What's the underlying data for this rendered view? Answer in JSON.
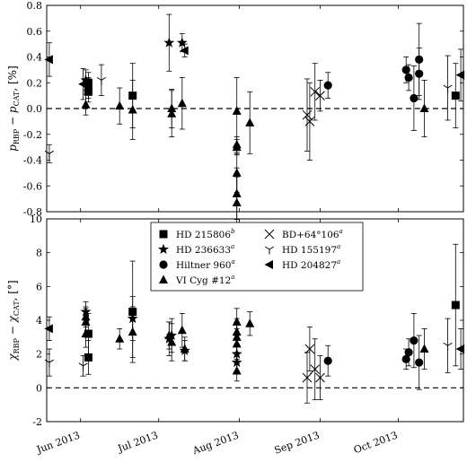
{
  "chart_data": [
    {
      "type": "scatter",
      "xlabel": "",
      "ylabel_main": "p",
      "ylabel_sub": "RBP",
      "ylabel_mid": " − p",
      "ylabel_sub2": "CAT",
      "ylabel_unit": ", [%]",
      "ylim": [
        -0.8,
        0.8
      ],
      "yticks": [
        -0.8,
        -0.6,
        -0.4,
        -0.2,
        0.0,
        0.2,
        0.4,
        0.6,
        0.8
      ],
      "xlim": [
        "2013-05-19",
        "2013-10-26"
      ],
      "zero_line": true,
      "series": [
        {
          "marker": "square",
          "points": [
            {
              "x": "2013-06-04",
              "y": 0.2,
              "err": 0.08
            },
            {
              "x": "2013-06-04",
              "y": 0.16,
              "err": 0.08
            },
            {
              "x": "2013-06-04",
              "y": 0.13,
              "err": 0.08
            },
            {
              "x": "2013-06-21",
              "y": 0.1,
              "err": 0.25
            },
            {
              "x": "2013-10-23",
              "y": 0.1,
              "err": 0.25
            }
          ]
        },
        {
          "marker": "star",
          "points": [
            {
              "x": "2013-07-05",
              "y": 0.51,
              "err": 0.22
            },
            {
              "x": "2013-07-10",
              "y": 0.51,
              "err": 0.07
            },
            {
              "x": "2013-06-03",
              "y": 0.22,
              "err": 0.08
            }
          ]
        },
        {
          "marker": "circle",
          "points": [
            {
              "x": "2013-10-04",
              "y": 0.3,
              "err": 0.1
            },
            {
              "x": "2013-10-05",
              "y": 0.24,
              "err": 0.1
            },
            {
              "x": "2013-10-07",
              "y": 0.08,
              "err": 0.25
            },
            {
              "x": "2013-10-09",
              "y": 0.38,
              "err": 0.28
            },
            {
              "x": "2013-10-09",
              "y": 0.27,
              "err": 0.2
            },
            {
              "x": "2013-09-04",
              "y": 0.18,
              "err": 0.1
            }
          ]
        },
        {
          "marker": "triangle",
          "points": [
            {
              "x": "2013-06-03",
              "y": 0.03,
              "err": 0.08
            },
            {
              "x": "2013-06-16",
              "y": 0.02,
              "err": 0.14
            },
            {
              "x": "2013-06-21",
              "y": -0.01,
              "err": 0.23
            },
            {
              "x": "2013-07-06",
              "y": 0.0,
              "err": 0.15
            },
            {
              "x": "2013-07-06",
              "y": -0.04,
              "err": 0.18
            },
            {
              "x": "2013-07-10",
              "y": 0.04,
              "err": 0.2
            },
            {
              "x": "2013-07-31",
              "y": -0.02,
              "err": 0.26
            },
            {
              "x": "2013-07-31",
              "y": -0.28,
              "err": 0.06
            },
            {
              "x": "2013-07-31",
              "y": -0.3,
              "err": 0.06
            },
            {
              "x": "2013-07-31",
              "y": -0.5,
              "err": 0.15
            },
            {
              "x": "2013-07-31",
              "y": -0.66,
              "err": 0.2
            },
            {
              "x": "2013-07-31",
              "y": -0.73,
              "err": 0.2
            },
            {
              "x": "2013-08-05",
              "y": -0.11,
              "err": 0.24
            },
            {
              "x": "2013-10-11",
              "y": 0.0,
              "err": 0.22
            }
          ]
        },
        {
          "marker": "x",
          "points": [
            {
              "x": "2013-08-27",
              "y": -0.05,
              "err": 0.28
            },
            {
              "x": "2013-08-28",
              "y": -0.1,
              "err": 0.3
            },
            {
              "x": "2013-08-30",
              "y": 0.13,
              "err": 0.22
            },
            {
              "x": "2013-09-01",
              "y": 0.1,
              "err": 0.12
            }
          ]
        },
        {
          "marker": "tri_down",
          "points": [
            {
              "x": "2013-05-20",
              "y": -0.35,
              "err": 0.07
            },
            {
              "x": "2013-06-09",
              "y": 0.22,
              "err": 0.12
            },
            {
              "x": "2013-10-20",
              "y": 0.16,
              "err": 0.25
            }
          ]
        },
        {
          "marker": "tri_left",
          "points": [
            {
              "x": "2013-05-20",
              "y": 0.38,
              "err": 0.13
            },
            {
              "x": "2013-06-02",
              "y": 0.19,
              "err": 0.12
            },
            {
              "x": "2013-07-11",
              "y": 0.45,
              "err": 0.05
            },
            {
              "x": "2013-10-25",
              "y": 0.26,
              "err": 0.2
            }
          ]
        }
      ]
    },
    {
      "type": "scatter",
      "xlabel": "",
      "ylabel_main": "χ",
      "ylabel_sub": "RBP",
      "ylabel_mid": " − χ",
      "ylabel_sub2": "CAT",
      "ylabel_unit": ", [°]",
      "ylim": [
        -2,
        10
      ],
      "yticks": [
        -2,
        0,
        2,
        4,
        6,
        8,
        10
      ],
      "xlim": [
        "2013-05-19",
        "2013-10-26"
      ],
      "xticks": [
        {
          "date": "2013-06-01",
          "label": "Jun 2013"
        },
        {
          "date": "2013-07-01",
          "label": "Jul 2013"
        },
        {
          "date": "2013-08-01",
          "label": "Aug 2013"
        },
        {
          "date": "2013-09-01",
          "label": "Sep 2013"
        },
        {
          "date": "2013-10-01",
          "label": "Oct 2013"
        }
      ],
      "zero_line": true,
      "legend": {
        "placement": "top-center",
        "entries": [
          {
            "marker": "square",
            "label": "HD 215806",
            "sup": "b"
          },
          {
            "marker": "x",
            "label": "BD+64°106",
            "sup": "a"
          },
          {
            "marker": "star",
            "label": "HD 236633",
            "sup": "a"
          },
          {
            "marker": "tri_down",
            "label": "HD 155197",
            "sup": "a"
          },
          {
            "marker": "circle",
            "label": "Hiltner 960",
            "sup": "a"
          },
          {
            "marker": "tri_left",
            "label": "HD 204827",
            "sup": "a"
          },
          {
            "marker": "triangle",
            "label": "VI Cyg #12",
            "sup": "a"
          }
        ]
      },
      "series": [
        {
          "marker": "square",
          "points": [
            {
              "x": "2013-06-04",
              "y": 3.2,
              "err": 1.2
            },
            {
              "x": "2013-06-04",
              "y": 1.8,
              "err": 1.0
            },
            {
              "x": "2013-06-21",
              "y": 4.5,
              "err": 3.0
            },
            {
              "x": "2013-10-23",
              "y": 4.9,
              "err": 3.6
            }
          ]
        },
        {
          "marker": "star",
          "points": [
            {
              "x": "2013-06-03",
              "y": 4.5,
              "err": 0.6
            },
            {
              "x": "2013-06-21",
              "y": 4.1,
              "err": 1.3
            },
            {
              "x": "2013-07-05",
              "y": 2.9,
              "err": 1.0
            },
            {
              "x": "2013-07-06",
              "y": 3.1,
              "err": 1.0
            },
            {
              "x": "2013-07-11",
              "y": 2.2,
              "err": 0.6
            },
            {
              "x": "2013-07-31",
              "y": 2.0,
              "err": 0.6
            },
            {
              "x": "2013-07-31",
              "y": 1.5,
              "err": 0.5
            }
          ]
        },
        {
          "marker": "circle",
          "points": [
            {
              "x": "2013-09-04",
              "y": 1.6,
              "err": 0.9
            },
            {
              "x": "2013-10-04",
              "y": 1.7,
              "err": 0.6
            },
            {
              "x": "2013-10-05",
              "y": 2.1,
              "err": 0.8
            },
            {
              "x": "2013-10-07",
              "y": 2.8,
              "err": 1.6
            },
            {
              "x": "2013-10-09",
              "y": 1.5,
              "err": 1.6
            }
          ]
        },
        {
          "marker": "triangle",
          "points": [
            {
              "x": "2013-06-03",
              "y": 4.2,
              "err": 0.6
            },
            {
              "x": "2013-06-03",
              "y": 3.9,
              "err": 0.8
            },
            {
              "x": "2013-06-03",
              "y": 3.2,
              "err": 0.8
            },
            {
              "x": "2013-06-16",
              "y": 2.9,
              "err": 0.6
            },
            {
              "x": "2013-06-21",
              "y": 3.3,
              "err": 1.5
            },
            {
              "x": "2013-07-05",
              "y": 3.1,
              "err": 0.8
            },
            {
              "x": "2013-07-06",
              "y": 2.7,
              "err": 1.1
            },
            {
              "x": "2013-07-10",
              "y": 3.4,
              "err": 1.0
            },
            {
              "x": "2013-07-11",
              "y": 2.3,
              "err": 0.7
            },
            {
              "x": "2013-07-31",
              "y": 3.9,
              "err": 0.8
            },
            {
              "x": "2013-07-31",
              "y": 3.3,
              "err": 0.8
            },
            {
              "x": "2013-07-31",
              "y": 3.0,
              "err": 0.9
            },
            {
              "x": "2013-07-31",
              "y": 2.6,
              "err": 0.9
            },
            {
              "x": "2013-07-31",
              "y": 1.0,
              "err": 0.6
            },
            {
              "x": "2013-08-05",
              "y": 3.8,
              "err": 0.7
            },
            {
              "x": "2013-10-11",
              "y": 2.3,
              "err": 1.2
            }
          ]
        },
        {
          "marker": "x",
          "points": [
            {
              "x": "2013-08-27",
              "y": 0.6,
              "err": 1.5
            },
            {
              "x": "2013-08-28",
              "y": 2.3,
              "err": 1.3
            },
            {
              "x": "2013-08-30",
              "y": 1.1,
              "err": 1.8
            },
            {
              "x": "2013-09-01",
              "y": 0.6,
              "err": 1.3
            }
          ]
        },
        {
          "marker": "tri_down",
          "points": [
            {
              "x": "2013-05-20",
              "y": 1.5,
              "err": 0.8
            },
            {
              "x": "2013-06-02",
              "y": 1.3,
              "err": 0.6
            },
            {
              "x": "2013-10-20",
              "y": 2.5,
              "err": 1.6
            }
          ]
        },
        {
          "marker": "tri_left",
          "points": [
            {
              "x": "2013-05-20",
              "y": 3.5,
              "err": 0.7
            },
            {
              "x": "2013-10-25",
              "y": 2.3,
              "err": 1.2
            }
          ]
        }
      ]
    }
  ]
}
